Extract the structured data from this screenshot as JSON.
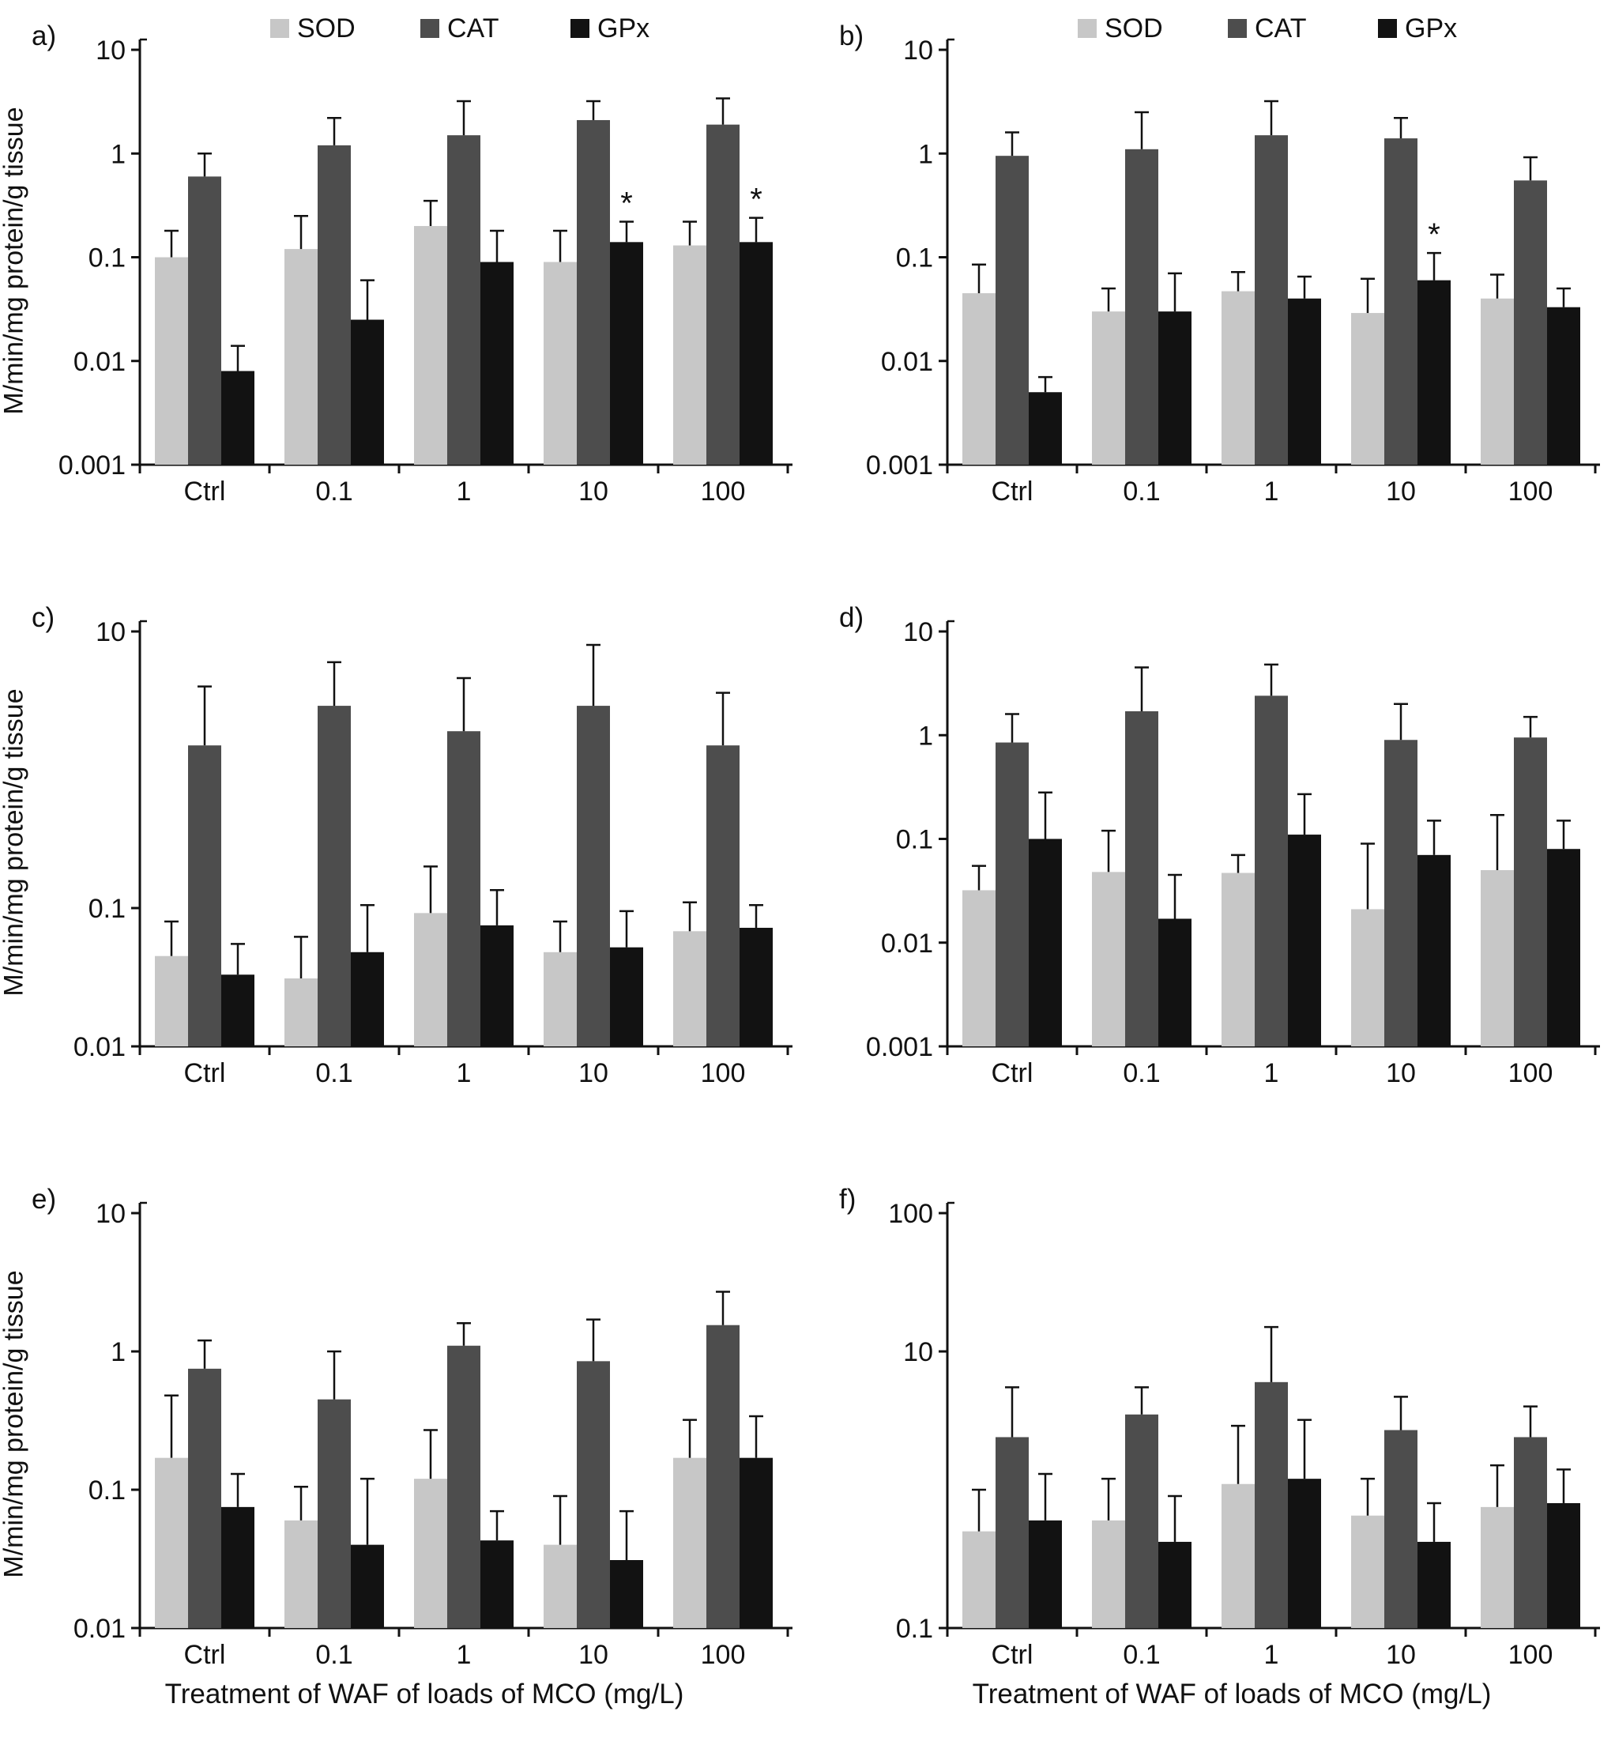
{
  "colors": {
    "SOD": "#c7c7c7",
    "CAT": "#4d4d4d",
    "GPx": "#121212"
  },
  "shared": {
    "y_axis_title": "M/min/mg protein/g tissue",
    "x_axis_title": "Treatment of WAF of loads of MCO (mg/L)",
    "significance_marker": "*"
  },
  "chart_data": [
    {
      "type": "bar",
      "panel_label": "a)",
      "log_scale": true,
      "ylim": [
        0.001,
        10
      ],
      "ytick_labels": [
        "10",
        "1",
        "0.1",
        "0.01",
        "0.001"
      ],
      "categories": [
        "Ctrl",
        "0.1",
        "1",
        "10",
        "100"
      ],
      "series": [
        {
          "name": "SOD",
          "values": [
            0.1,
            0.12,
            0.2,
            0.09,
            0.13
          ],
          "errors_upper": [
            0.18,
            0.25,
            0.35,
            0.18,
            0.22
          ]
        },
        {
          "name": "CAT",
          "values": [
            0.6,
            1.2,
            1.5,
            2.1,
            1.9
          ],
          "errors_upper": [
            1.0,
            2.2,
            3.2,
            3.2,
            3.4
          ]
        },
        {
          "name": "GPx",
          "values": [
            0.008,
            0.025,
            0.09,
            0.14,
            0.14
          ],
          "errors_upper": [
            0.014,
            0.06,
            0.18,
            0.22,
            0.24
          ],
          "annotations": [
            "",
            "",
            "",
            "*",
            "*"
          ]
        }
      ],
      "legend": true,
      "ylabel": "M/min/mg protein/g tissue",
      "xlabel": ""
    },
    {
      "type": "bar",
      "panel_label": "b)",
      "log_scale": true,
      "ylim": [
        0.001,
        10
      ],
      "ytick_labels": [
        "10",
        "1",
        "0.1",
        "0.01",
        "0.001"
      ],
      "categories": [
        "Ctrl",
        "0.1",
        "1",
        "10",
        "100"
      ],
      "series": [
        {
          "name": "SOD",
          "values": [
            0.045,
            0.03,
            0.047,
            0.029,
            0.04
          ],
          "errors_upper": [
            0.085,
            0.05,
            0.072,
            0.062,
            0.068
          ]
        },
        {
          "name": "CAT",
          "values": [
            0.95,
            1.1,
            1.5,
            1.4,
            0.55
          ],
          "errors_upper": [
            1.6,
            2.5,
            3.2,
            2.2,
            0.92
          ]
        },
        {
          "name": "GPx",
          "values": [
            0.005,
            0.03,
            0.04,
            0.06,
            0.033
          ],
          "errors_upper": [
            0.007,
            0.07,
            0.065,
            0.11,
            0.05
          ],
          "annotations": [
            "",
            "",
            "",
            "*",
            ""
          ]
        }
      ],
      "legend": true,
      "ylabel": "",
      "xlabel": ""
    },
    {
      "type": "bar",
      "panel_label": "c)",
      "log_scale": true,
      "ylim": [
        0.01,
        10
      ],
      "ytick_labels": [
        "10",
        "0.1",
        "0.01"
      ],
      "categories": [
        "Ctrl",
        "0.1",
        "1",
        "10",
        "100"
      ],
      "series": [
        {
          "name": "SOD",
          "values": [
            0.045,
            0.031,
            0.092,
            0.048,
            0.068
          ],
          "errors_upper": [
            0.08,
            0.062,
            0.2,
            0.08,
            0.11
          ]
        },
        {
          "name": "CAT",
          "values": [
            1.5,
            2.9,
            1.9,
            2.9,
            1.5
          ],
          "errors_upper": [
            4.0,
            6.0,
            4.6,
            8.0,
            3.6
          ]
        },
        {
          "name": "GPx",
          "values": [
            0.033,
            0.048,
            0.075,
            0.052,
            0.072
          ],
          "errors_upper": [
            0.055,
            0.105,
            0.135,
            0.095,
            0.105
          ]
        }
      ],
      "legend": false,
      "ylabel": "M/min/mg protein/g tissue",
      "xlabel": ""
    },
    {
      "type": "bar",
      "panel_label": "d)",
      "log_scale": true,
      "ylim": [
        0.001,
        10
      ],
      "ytick_labels": [
        "10",
        "1",
        "0.1",
        "0.01",
        "0.001"
      ],
      "categories": [
        "Ctrl",
        "0.1",
        "1",
        "10",
        "100"
      ],
      "series": [
        {
          "name": "SOD",
          "values": [
            0.032,
            0.048,
            0.047,
            0.021,
            0.05
          ],
          "errors_upper": [
            0.055,
            0.12,
            0.07,
            0.09,
            0.17
          ]
        },
        {
          "name": "CAT",
          "values": [
            0.85,
            1.7,
            2.4,
            0.9,
            0.95
          ],
          "errors_upper": [
            1.6,
            4.5,
            4.8,
            2.0,
            1.5
          ]
        },
        {
          "name": "GPx",
          "values": [
            0.1,
            0.017,
            0.11,
            0.07,
            0.08
          ],
          "errors_upper": [
            0.28,
            0.045,
            0.27,
            0.15,
            0.15
          ]
        }
      ],
      "legend": false,
      "ylabel": "",
      "xlabel": ""
    },
    {
      "type": "bar",
      "panel_label": "e)",
      "log_scale": true,
      "ylim": [
        0.01,
        10
      ],
      "ytick_labels": [
        "10",
        "1",
        "0.1",
        "0.01"
      ],
      "categories": [
        "Ctrl",
        "0.1",
        "1",
        "10",
        "100"
      ],
      "series": [
        {
          "name": "SOD",
          "values": [
            0.17,
            0.06,
            0.12,
            0.04,
            0.17
          ],
          "errors_upper": [
            0.48,
            0.105,
            0.27,
            0.09,
            0.32
          ]
        },
        {
          "name": "CAT",
          "values": [
            0.75,
            0.45,
            1.1,
            0.85,
            1.55
          ],
          "errors_upper": [
            1.2,
            1.0,
            1.6,
            1.7,
            2.7
          ]
        },
        {
          "name": "GPx",
          "values": [
            0.075,
            0.04,
            0.043,
            0.031,
            0.17
          ],
          "errors_upper": [
            0.13,
            0.12,
            0.07,
            0.07,
            0.34
          ]
        }
      ],
      "legend": false,
      "ylabel": "M/min/mg protein/g tissue",
      "xlabel": "Treatment of WAF of loads of MCO (mg/L)"
    },
    {
      "type": "bar",
      "panel_label": "f)",
      "log_scale": true,
      "ylim": [
        0.1,
        100
      ],
      "ytick_labels": [
        "100",
        "10",
        "0.1"
      ],
      "categories": [
        "Ctrl",
        "0.1",
        "1",
        "10",
        "100"
      ],
      "series": [
        {
          "name": "SOD",
          "values": [
            0.5,
            0.6,
            1.1,
            0.65,
            0.75
          ],
          "errors_upper": [
            1.0,
            1.2,
            2.9,
            1.2,
            1.5
          ]
        },
        {
          "name": "CAT",
          "values": [
            2.4,
            3.5,
            6.0,
            2.7,
            2.4
          ],
          "errors_upper": [
            5.5,
            5.5,
            15,
            4.7,
            4.0
          ]
        },
        {
          "name": "GPx",
          "values": [
            0.6,
            0.42,
            1.2,
            0.42,
            0.8
          ],
          "errors_upper": [
            1.3,
            0.9,
            3.2,
            0.8,
            1.4
          ]
        }
      ],
      "legend": false,
      "ylabel": "",
      "xlabel": "Treatment of WAF of loads of MCO (mg/L)"
    }
  ]
}
